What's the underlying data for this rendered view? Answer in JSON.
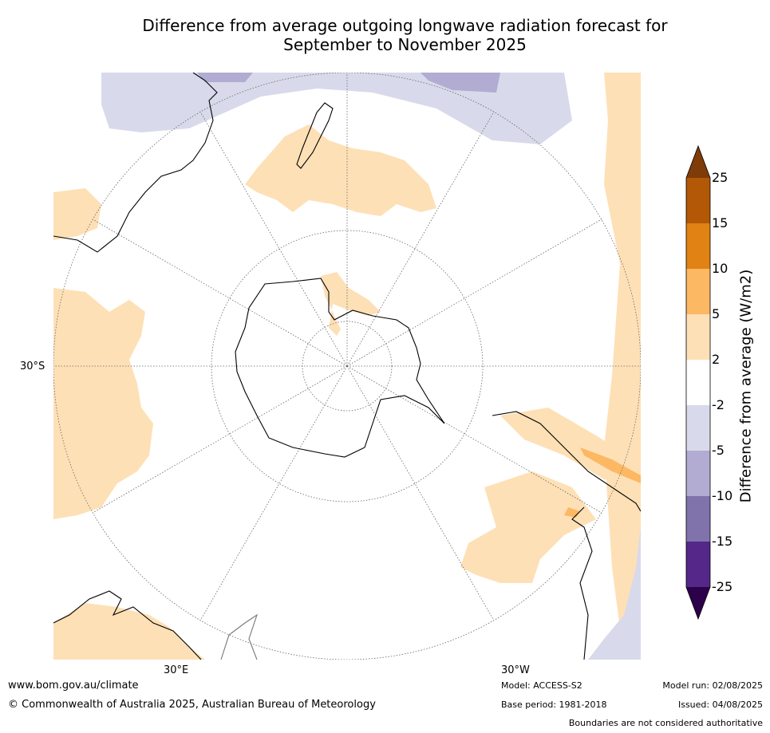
{
  "title": {
    "line1": "Difference from average outgoing longwave radiation forecast for",
    "line2": "September to November 2025"
  },
  "map": {
    "projection": "south-polar-stereographic",
    "lat_label": "30°S",
    "lon_labels": {
      "east": "30°E",
      "west": "30°W"
    },
    "land_outline_color": "#000000",
    "graticule_color": "#666666"
  },
  "colorbar": {
    "title": "Difference from average (W/m2)",
    "ticks": [
      "25",
      "15",
      "10",
      "5",
      "2",
      "-2",
      "-5",
      "-10",
      "-15",
      "-25"
    ],
    "extend_high_color": "#7f3b08",
    "extend_low_color": "#2d004b",
    "bins": [
      {
        "range": "15 to 25",
        "color": "#b35806"
      },
      {
        "range": "10 to 15",
        "color": "#e08214"
      },
      {
        "range": "5 to 10",
        "color": "#fdb863"
      },
      {
        "range": "2 to 5",
        "color": "#fee0b6"
      },
      {
        "range": "-2 to 2",
        "color": "#ffffff"
      },
      {
        "range": "-5 to -2",
        "color": "#d8daeb"
      },
      {
        "range": "-10 to -5",
        "color": "#b2abd2"
      },
      {
        "range": "-15 to -10",
        "color": "#8073ac"
      },
      {
        "range": "-25 to -15",
        "color": "#542788"
      }
    ]
  },
  "footer": {
    "website": "www.bom.gov.au/climate",
    "copyright": "© Commonwealth of Australia 2025, Australian Bureau of Meteorology",
    "model": "Model: ACCESS-S2",
    "base_period": "Base period: 1981-2018",
    "model_run": "Model run: 02/08/2025",
    "issued": "Issued: 04/08/2025",
    "disclaimer": "Boundaries are not considered authoritative"
  }
}
